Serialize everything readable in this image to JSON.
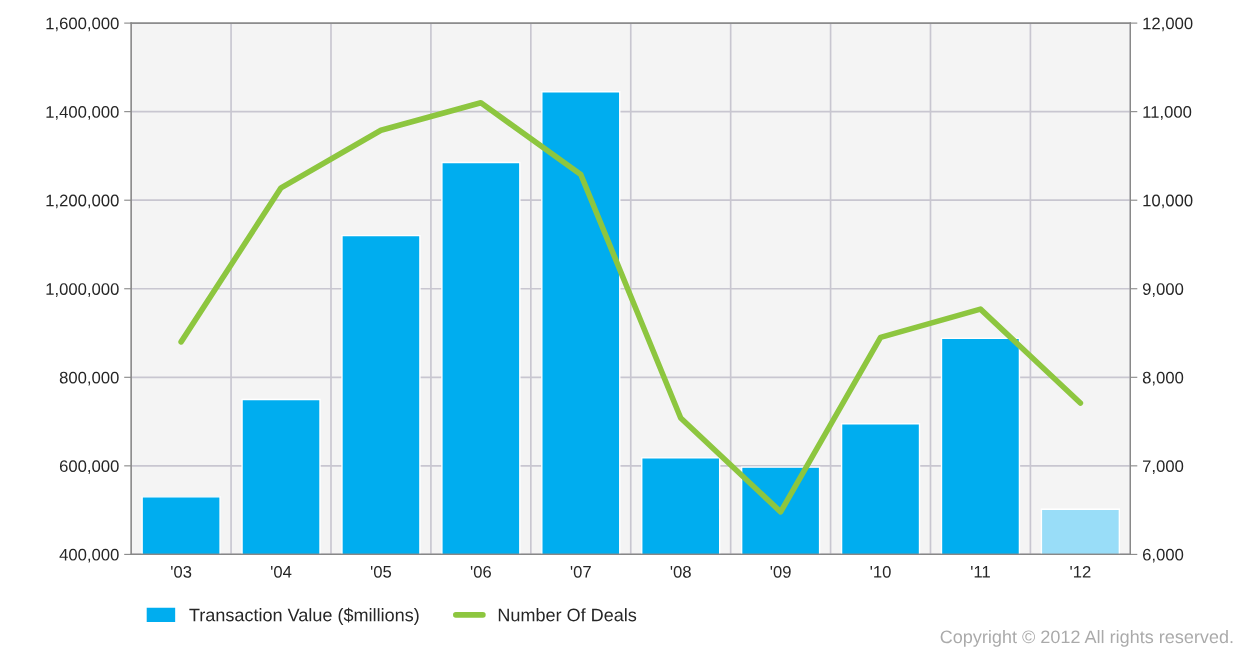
{
  "chart_data": {
    "type": "bar",
    "categories": [
      "'03",
      "'04",
      "'05",
      "'06",
      "'07",
      "'08",
      "'09",
      "'10",
      "'11",
      "'12"
    ],
    "series": [
      {
        "name": "Transaction Value ($millions)",
        "color": "#00adef",
        "colors": [
          "#00adef",
          "#00adef",
          "#00adef",
          "#00adef",
          "#00adef",
          "#00adef",
          "#00adef",
          "#00adef",
          "#00adef",
          "#99ddf8"
        ],
        "values": [
          530000,
          750000,
          1120000,
          1285000,
          1445000,
          618000,
          597000,
          695000,
          888000,
          502000
        ]
      },
      {
        "name": "Number Of Deals",
        "type": "line",
        "axis": "y2",
        "color": "#8dc63f",
        "values": [
          8400,
          10140,
          10790,
          11100,
          10290,
          7540,
          6480,
          8450,
          8770,
          7710
        ]
      }
    ],
    "ylim": [
      400000,
      1600000
    ],
    "yticks": [
      {
        "value": 400000,
        "label": "400,000"
      },
      {
        "value": 600000,
        "label": "600,000"
      },
      {
        "value": 800000,
        "label": "800,000"
      },
      {
        "value": 1000000,
        "label": "1,000,000"
      },
      {
        "value": 1200000,
        "label": "1,200,000"
      },
      {
        "value": 1400000,
        "label": "1,400,000"
      },
      {
        "value": 1600000,
        "label": "1,600,000"
      }
    ],
    "y2lim": [
      6000,
      12000
    ],
    "y2ticks": [
      {
        "value": 6000,
        "label": "6,000"
      },
      {
        "value": 7000,
        "label": "7,000"
      },
      {
        "value": 8000,
        "label": "8,000"
      },
      {
        "value": 9000,
        "label": "9,000"
      },
      {
        "value": 10000,
        "label": "10,000"
      },
      {
        "value": 11000,
        "label": "11,000"
      },
      {
        "value": 12000,
        "label": "12,000"
      }
    ],
    "grid": true,
    "legend": "bottom",
    "marker": "none",
    "line_style": "solid",
    "annotations": [
      "Copyright © 2012 All rights reserved."
    ]
  }
}
